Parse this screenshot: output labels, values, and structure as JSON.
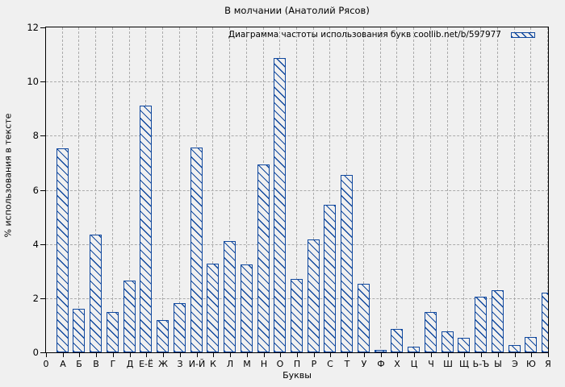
{
  "title": "В молчании (Анатолий Рясов)",
  "colors": {
    "bar": "#10489e",
    "background": "#f0f0f0",
    "grid": "#ababab",
    "axis": "#000000",
    "text": "#000000"
  },
  "chart_data": {
    "type": "bar",
    "title": "В молчании (Анатолий Рясов)",
    "xlabel": "Буквы",
    "ylabel": "% использования в тексте",
    "legend": "Диаграмма частоты использования букв coollib.net/b/597977",
    "legend_position": "top-right",
    "x_origin_label": "0",
    "categories": [
      "А",
      "Б",
      "В",
      "Г",
      "Д",
      "Е-Ё",
      "Ж",
      "З",
      "И-Й",
      "К",
      "Л",
      "М",
      "Н",
      "О",
      "П",
      "Р",
      "С",
      "Т",
      "У",
      "Ф",
      "Х",
      "Ц",
      "Ч",
      "Ш",
      "Щ",
      "Ь-Ъ",
      "Ы",
      "Э",
      "Ю",
      "Я"
    ],
    "values": [
      7.52,
      1.6,
      4.34,
      1.5,
      2.65,
      9.1,
      1.18,
      1.83,
      7.55,
      3.28,
      4.1,
      3.26,
      6.94,
      10.87,
      2.72,
      4.18,
      5.46,
      6.55,
      2.52,
      0.08,
      0.85,
      0.22,
      1.5,
      0.78,
      0.53,
      2.04,
      2.28,
      0.27,
      0.58,
      2.21
    ],
    "ylim": [
      0,
      12
    ],
    "yticks": [
      0,
      2,
      4,
      6,
      8,
      10,
      12
    ],
    "grid": true,
    "bar_style": "hatched-outline"
  }
}
